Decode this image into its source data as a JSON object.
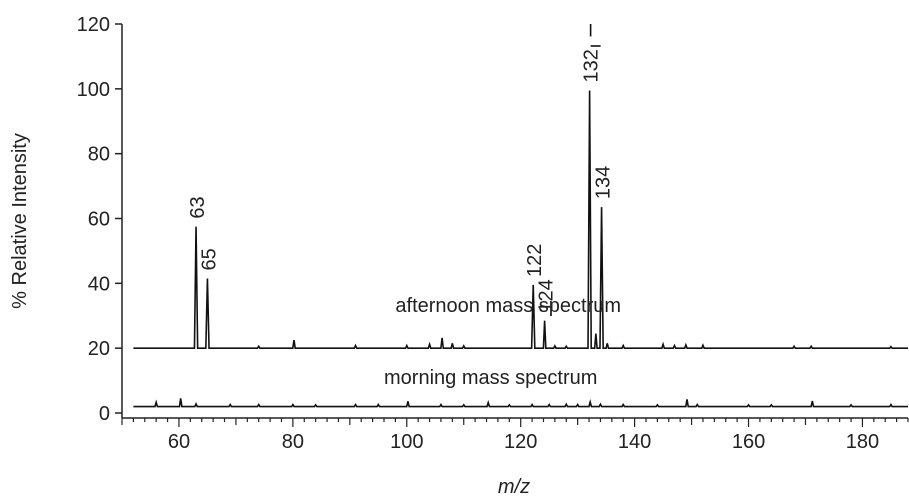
{
  "chart_data": {
    "type": "line",
    "title": "",
    "xlabel": "m/z",
    "ylabel": "% Relative Intensity",
    "xlim": [
      50,
      188
    ],
    "ylim": [
      0,
      120
    ],
    "grid": false,
    "x_ticks": [
      60,
      80,
      100,
      120,
      140,
      160,
      180
    ],
    "y_ticks": [
      0,
      20,
      40,
      60,
      80,
      100,
      120
    ],
    "series": [
      {
        "name": "afternoon mass spectrum",
        "baseline": 20,
        "peaks": [
          {
            "x": 63,
            "y": 57.5,
            "label": "63"
          },
          {
            "x": 65,
            "y": 41.5,
            "label": "65"
          },
          {
            "x": 74,
            "y": 20.6
          },
          {
            "x": 80.2,
            "y": 22.5
          },
          {
            "x": 91,
            "y": 20.8
          },
          {
            "x": 100,
            "y": 20.8
          },
          {
            "x": 104,
            "y": 21.2
          },
          {
            "x": 106.2,
            "y": 23.2
          },
          {
            "x": 108,
            "y": 21.5
          },
          {
            "x": 110,
            "y": 20.7
          },
          {
            "x": 122.2,
            "y": 39.5,
            "label": "122"
          },
          {
            "x": 124.2,
            "y": 28.5,
            "label": "124"
          },
          {
            "x": 126,
            "y": 20.7
          },
          {
            "x": 128,
            "y": 20.6
          },
          {
            "x": 132.1,
            "y": 99.5,
            "label": "132"
          },
          {
            "x": 133.2,
            "y": 24.5
          },
          {
            "x": 134.2,
            "y": 63.5,
            "label": "134"
          },
          {
            "x": 135.2,
            "y": 21.5
          },
          {
            "x": 138,
            "y": 20.8
          },
          {
            "x": 145,
            "y": 21.2
          },
          {
            "x": 147,
            "y": 20.8
          },
          {
            "x": 149,
            "y": 21.0
          },
          {
            "x": 152,
            "y": 20.9
          },
          {
            "x": 168,
            "y": 20.6
          },
          {
            "x": 171,
            "y": 20.6
          },
          {
            "x": 185,
            "y": 20.5
          }
        ]
      },
      {
        "name": "morning mass spectrum",
        "baseline": 2,
        "peaks": [
          {
            "x": 56,
            "y": 3.3
          },
          {
            "x": 60.3,
            "y": 4.5
          },
          {
            "x": 63,
            "y": 2.8
          },
          {
            "x": 69,
            "y": 2.6
          },
          {
            "x": 74,
            "y": 2.6
          },
          {
            "x": 80,
            "y": 2.6
          },
          {
            "x": 84,
            "y": 2.5
          },
          {
            "x": 91,
            "y": 2.6
          },
          {
            "x": 95,
            "y": 2.6
          },
          {
            "x": 100.2,
            "y": 3.6
          },
          {
            "x": 106,
            "y": 2.6
          },
          {
            "x": 110,
            "y": 2.5
          },
          {
            "x": 114.3,
            "y": 3.2
          },
          {
            "x": 118,
            "y": 2.5
          },
          {
            "x": 122,
            "y": 2.6
          },
          {
            "x": 125,
            "y": 2.6
          },
          {
            "x": 128,
            "y": 2.7
          },
          {
            "x": 130,
            "y": 2.6
          },
          {
            "x": 132.2,
            "y": 3.4
          },
          {
            "x": 134,
            "y": 2.7
          },
          {
            "x": 138,
            "y": 2.6
          },
          {
            "x": 144,
            "y": 2.5
          },
          {
            "x": 149.2,
            "y": 4.2
          },
          {
            "x": 151,
            "y": 2.6
          },
          {
            "x": 160,
            "y": 2.5
          },
          {
            "x": 164,
            "y": 2.5
          },
          {
            "x": 171.2,
            "y": 3.7
          },
          {
            "x": 178,
            "y": 2.5
          },
          {
            "x": 185,
            "y": 2.6
          }
        ]
      }
    ]
  }
}
